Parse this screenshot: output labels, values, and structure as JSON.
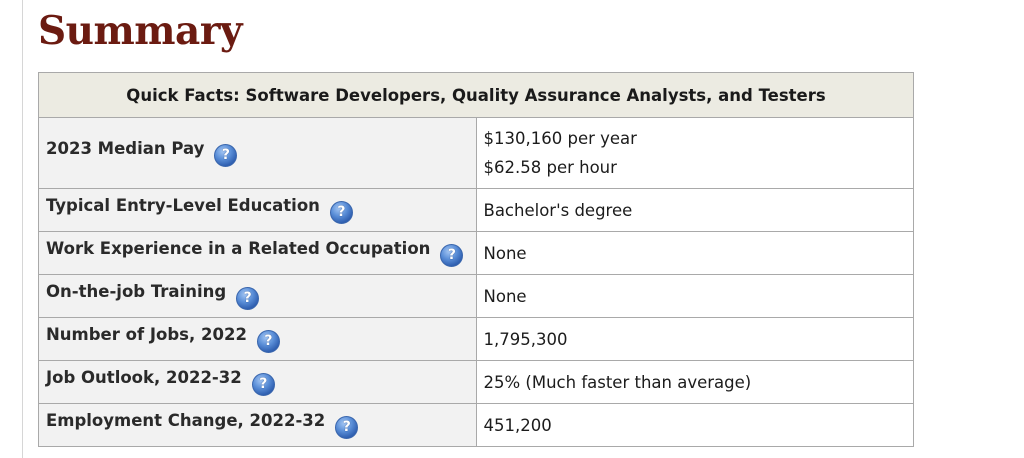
{
  "page_title": "Summary",
  "quick_facts": {
    "header": "Quick Facts: Software Developers, Quality Assurance Analysts, and Testers",
    "help_icon_glyph": "?",
    "rows": [
      {
        "label": "2023 Median Pay",
        "values": [
          "$130,160 per year",
          "$62.58 per hour"
        ]
      },
      {
        "label": "Typical Entry-Level Education",
        "values": [
          "Bachelor's degree"
        ]
      },
      {
        "label": "Work Experience in a Related Occupation",
        "values": [
          "None"
        ]
      },
      {
        "label": "On-the-job Training",
        "values": [
          "None"
        ]
      },
      {
        "label": "Number of Jobs, 2022",
        "values": [
          "1,795,300"
        ]
      },
      {
        "label": "Job Outlook, 2022-32",
        "values": [
          "25% (Much faster than average)"
        ]
      },
      {
        "label": "Employment Change, 2022-32",
        "values": [
          "451,200"
        ]
      }
    ]
  },
  "colors": {
    "title": "#6b1b11",
    "header_bg": "#ecebe2",
    "label_bg": "#f2f2f2",
    "border": "#a9a9a9",
    "help_icon": "#3a6fc4"
  }
}
